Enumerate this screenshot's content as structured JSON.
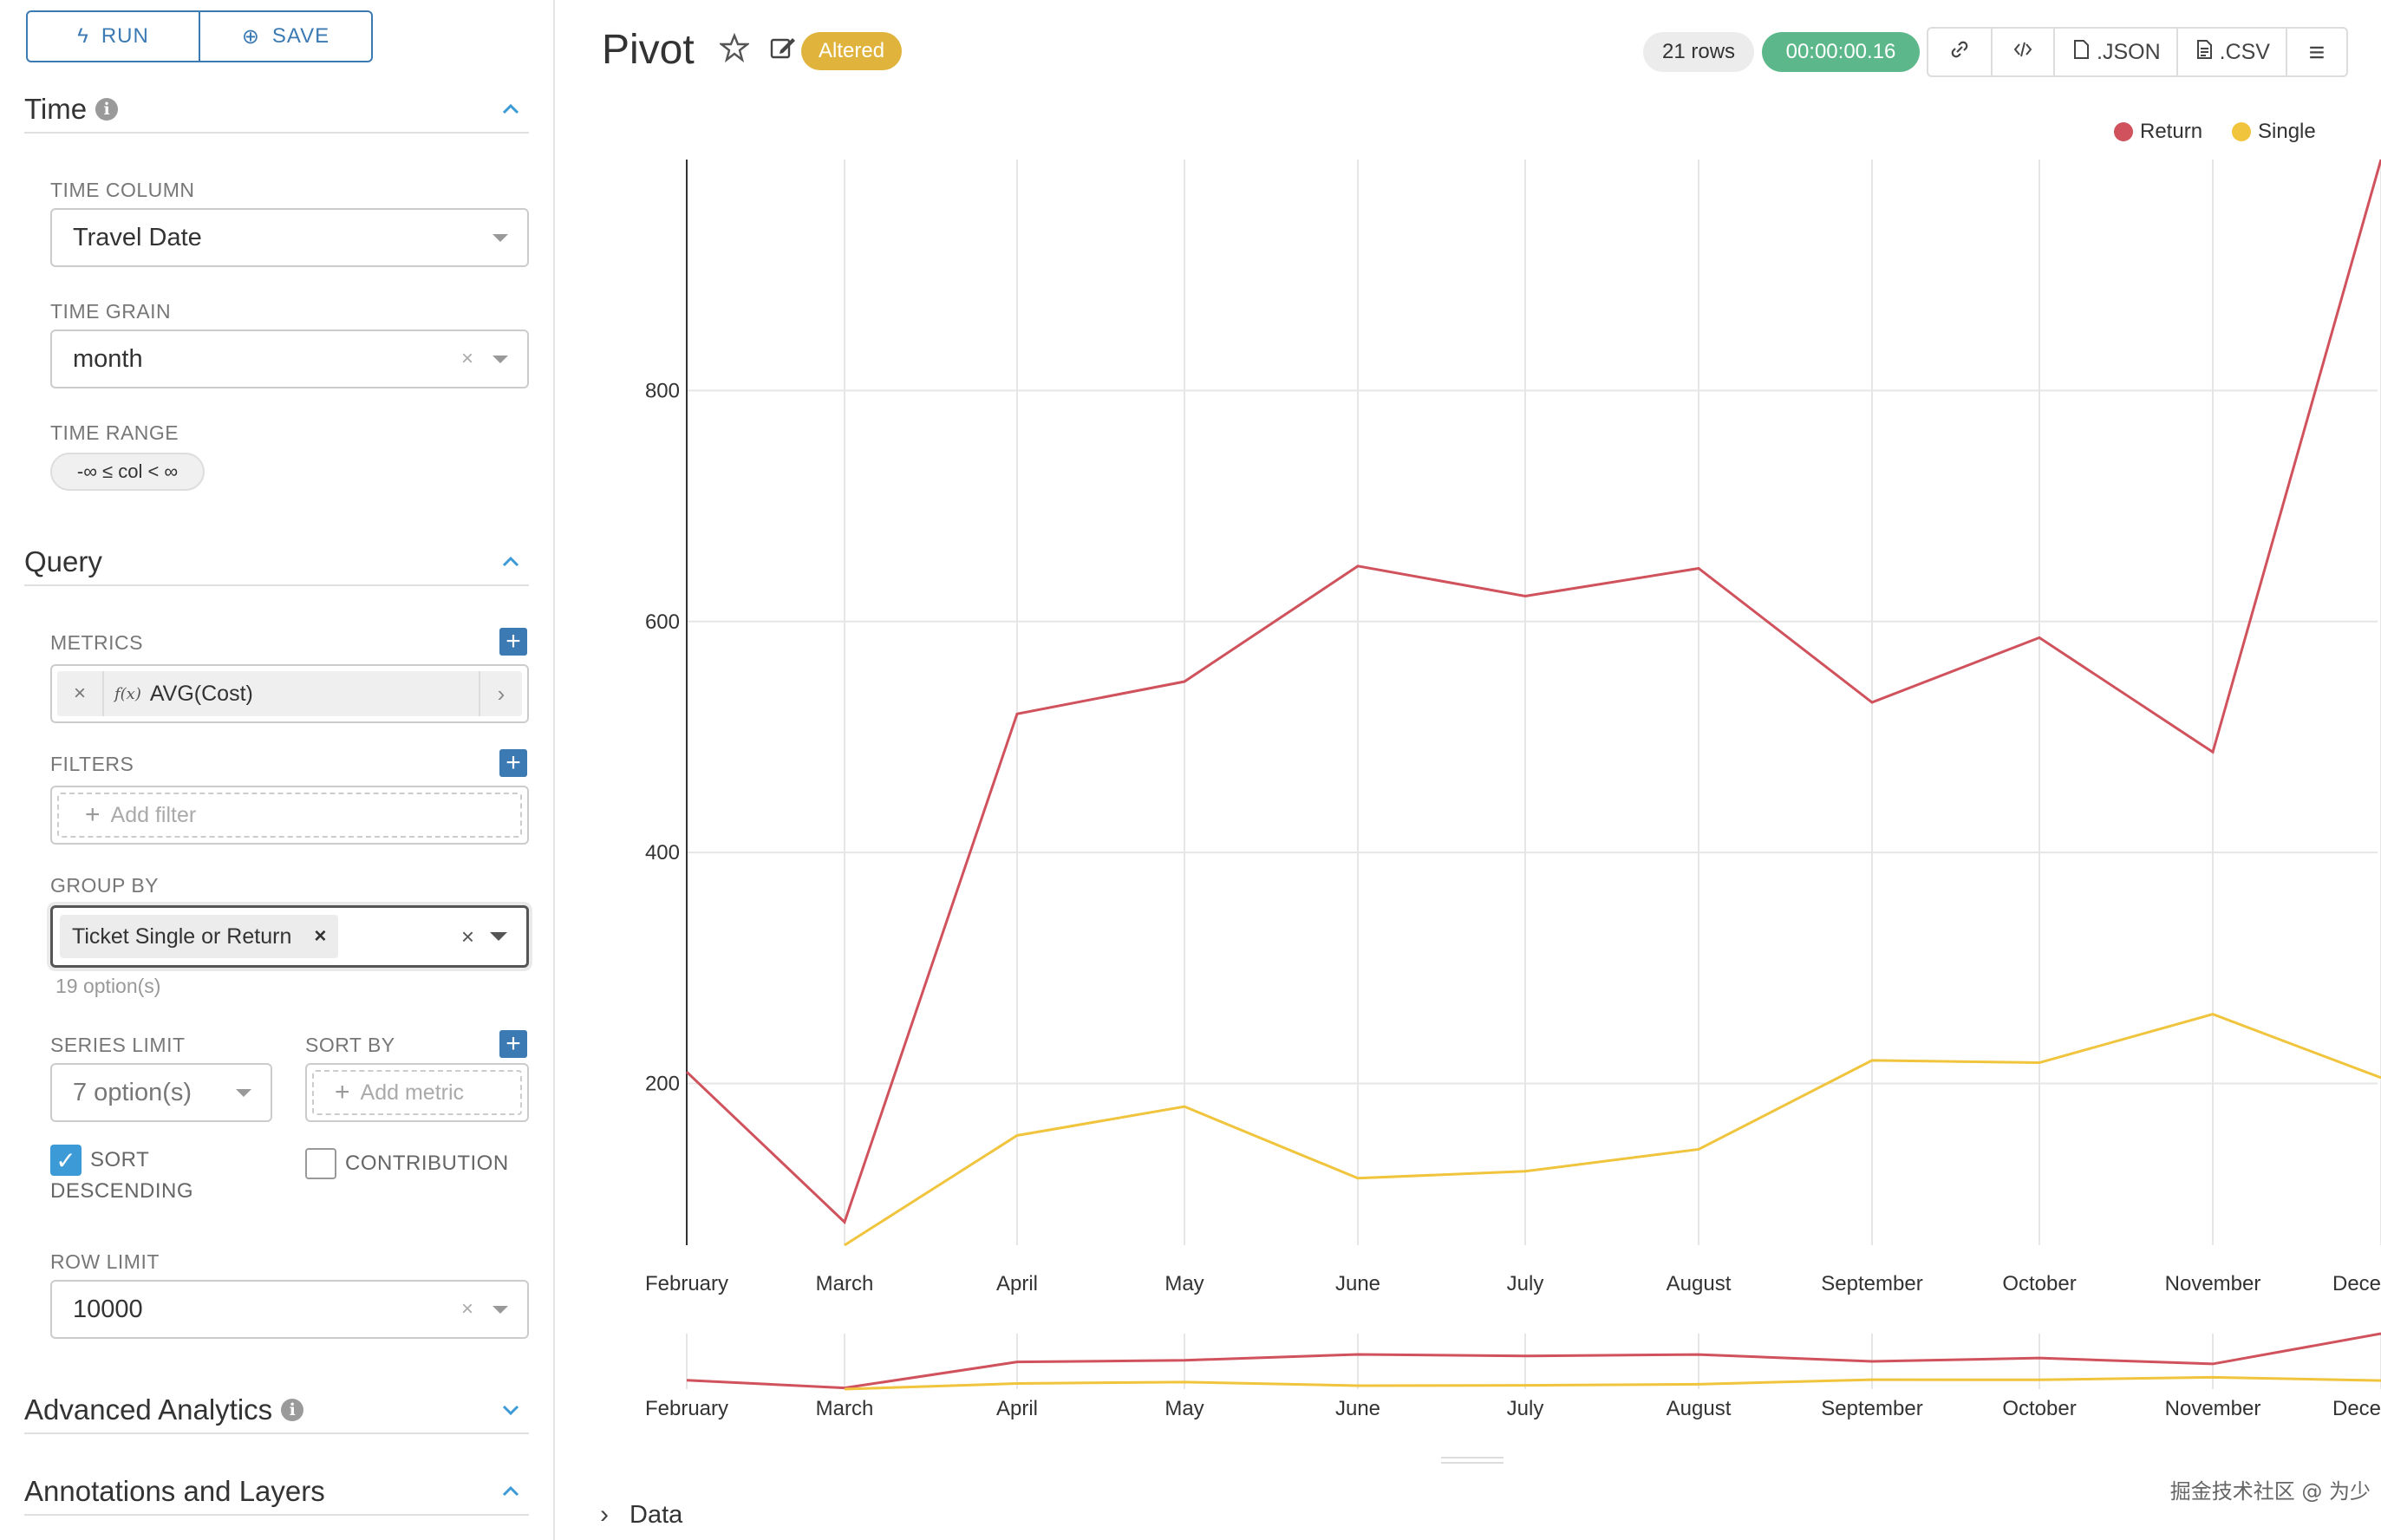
{
  "toolbar": {
    "run_label": "RUN",
    "save_label": "SAVE"
  },
  "sections": {
    "time": "Time",
    "query": "Query",
    "advanced_analytics": "Advanced Analytics",
    "annotations": "Annotations and Layers"
  },
  "time_controls": {
    "time_column_label": "TIME COLUMN",
    "time_column_value": "Travel Date",
    "time_grain_label": "TIME GRAIN",
    "time_grain_value": "month",
    "time_range_label": "TIME RANGE",
    "time_range_value": "-∞ ≤ col < ∞"
  },
  "query_controls": {
    "metrics_label": "METRICS",
    "metric_value": "AVG(Cost)",
    "metric_fx": "f(x)",
    "filters_label": "FILTERS",
    "filters_placeholder": "Add filter",
    "group_by_label": "GROUP BY",
    "group_by_value": "Ticket Single or Return",
    "group_by_hint": "19 option(s)",
    "series_limit_label": "SERIES LIMIT",
    "series_limit_value": "7 option(s)",
    "sort_by_label": "SORT BY",
    "sort_by_placeholder": "Add metric",
    "sort_desc_label_1": "SORT",
    "sort_desc_label_2": "DESCENDING",
    "sort_desc_checked": true,
    "contribution_label": "CONTRIBUTION",
    "contribution_checked": false,
    "row_limit_label": "ROW LIMIT",
    "row_limit_value": "10000"
  },
  "header": {
    "title": "Pivot",
    "altered": "Altered",
    "rows": "21 rows",
    "duration": "00:00:00.16",
    "json_label": ".JSON",
    "csv_label": ".CSV"
  },
  "colors": {
    "accent": "#3c7ab3",
    "return": "#d0525d",
    "single": "#f0c43c",
    "altered": "#e0b43c",
    "success": "#5cb88a"
  },
  "chart_data": {
    "type": "line",
    "x": [
      "February",
      "March",
      "April",
      "May",
      "June",
      "July",
      "August",
      "September",
      "October",
      "November",
      "Dece"
    ],
    "series": [
      {
        "name": "Return",
        "color": "#d0525d",
        "values": [
          210,
          80,
          520,
          548,
          648,
          622,
          646,
          530,
          586,
          487,
          1000
        ]
      },
      {
        "name": "Single",
        "color": "#f0c43c",
        "values": [
          null,
          60,
          155,
          180,
          118,
          124,
          143,
          220,
          218,
          260,
          205
        ]
      }
    ],
    "yticks": [
      200,
      400,
      600,
      800
    ],
    "ylim": [
      60,
      1000
    ],
    "legend_position": "top-right",
    "grid": true
  },
  "data_section": {
    "label": "Data"
  },
  "watermark": "掘金技术社区 @ 为少"
}
